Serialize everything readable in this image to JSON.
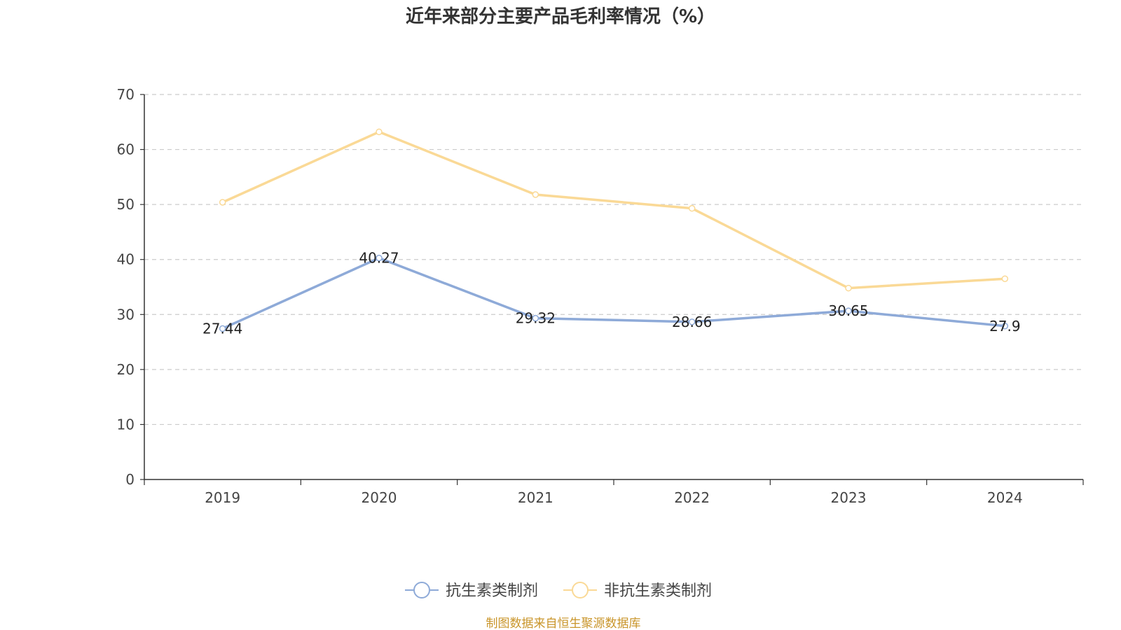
{
  "chart_data": {
    "type": "line",
    "title": "近年来部分主要产品毛利率情况（%）",
    "categories": [
      "2019",
      "2020",
      "2021",
      "2022",
      "2023",
      "2024"
    ],
    "ylim": [
      0,
      70
    ],
    "yticks": [
      "0",
      "10",
      "20",
      "30",
      "40",
      "50",
      "60",
      "70"
    ],
    "grid": true,
    "legend_position": "bottom-center",
    "series": [
      {
        "name": "抗生素类制剂",
        "color": "#8eaad8",
        "values": [
          27.44,
          40.27,
          29.32,
          28.66,
          30.65,
          27.9
        ],
        "labels": [
          "27.44",
          "40.27",
          "29.32",
          "28.66",
          "30.65",
          "27.9"
        ],
        "show_labels": true
      },
      {
        "name": "非抗生素类制剂",
        "color": "#fad996",
        "values": [
          50.4,
          63.2,
          51.8,
          49.3,
          34.8,
          36.5
        ],
        "show_labels": false
      }
    ]
  },
  "source_note": "制图数据来自恒生聚源数据库"
}
